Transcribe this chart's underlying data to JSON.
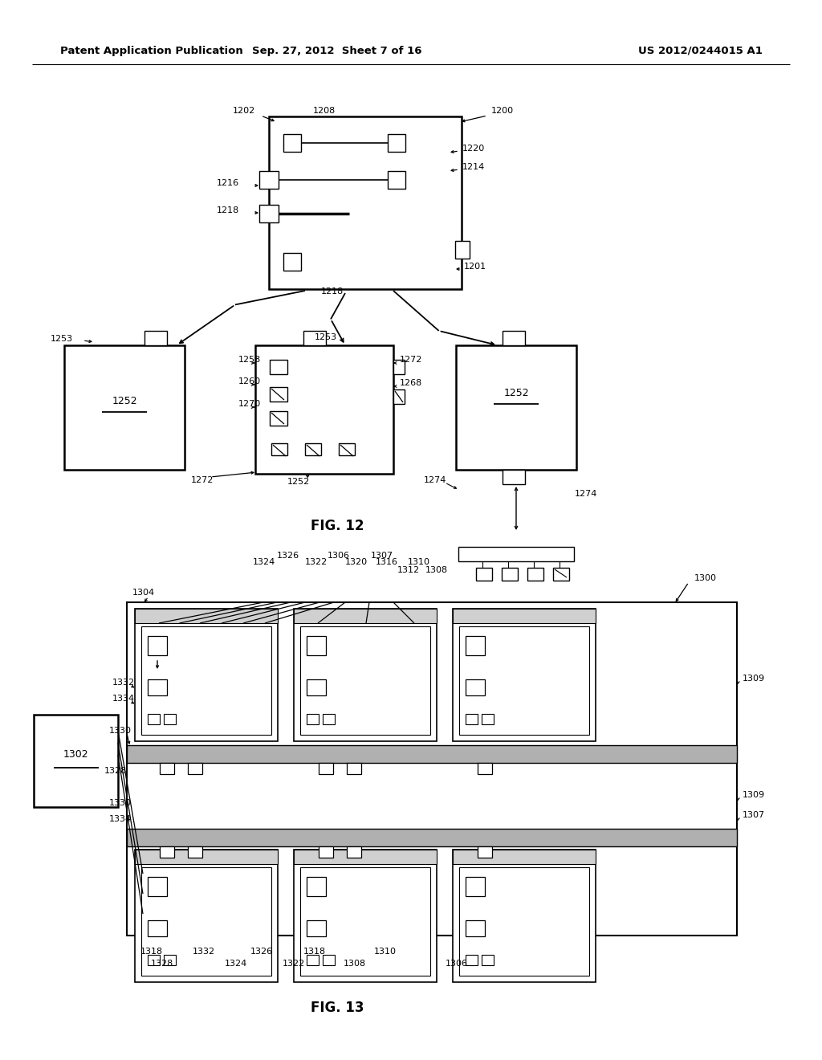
{
  "header_left": "Patent Application Publication",
  "header_mid": "Sep. 27, 2012  Sheet 7 of 16",
  "header_right": "US 2012/0244015 A1",
  "fig12_label": "FIG. 12",
  "fig13_label": "FIG. 13",
  "bg_color": "#ffffff",
  "line_color": "#000000"
}
